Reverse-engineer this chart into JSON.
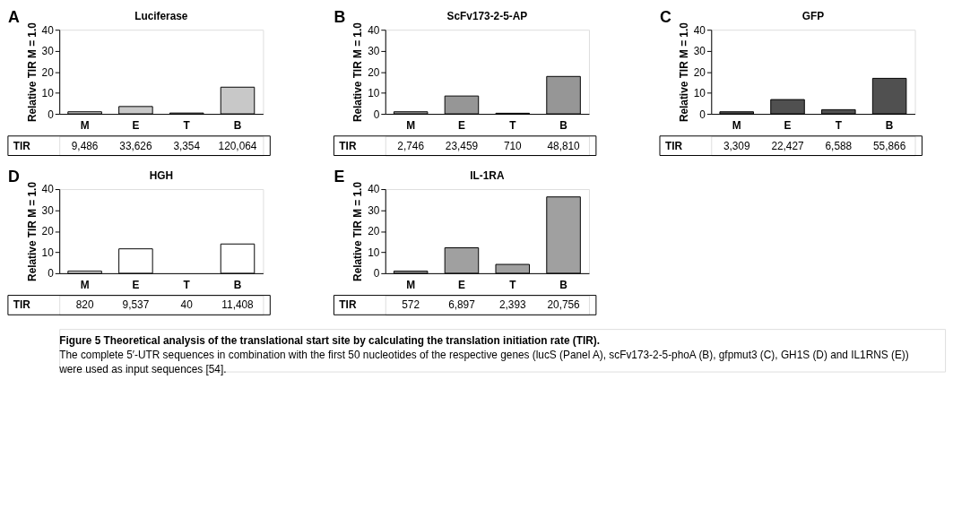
{
  "chart_data": [
    {
      "type": "bar",
      "title": "Luciferase",
      "ylabel": "Relative TIR M = 1.0",
      "categories": [
        "M",
        "E",
        "T",
        "B"
      ],
      "values": [
        1,
        3.5,
        0.4,
        12.7
      ],
      "color": "#c8c8c8",
      "ylim": [
        0,
        40
      ],
      "yticks": [
        0,
        10,
        20,
        30,
        40
      ],
      "grid": false,
      "annotations": [
        "A",
        "TIR",
        "9,486",
        "33,626",
        "3,354",
        "120,064"
      ]
    },
    {
      "type": "bar",
      "title": "ScFv173-2-5-AP",
      "ylabel": "Relative TIR M = 1.0",
      "categories": [
        "M",
        "E",
        "T",
        "B"
      ],
      "values": [
        1,
        8.5,
        0.3,
        17.8
      ],
      "color": "#969696",
      "ylim": [
        0,
        40
      ],
      "yticks": [
        0,
        10,
        20,
        30,
        40
      ],
      "grid": false,
      "annotations": [
        "B",
        "TIR",
        "2,746",
        "23,459",
        "710",
        "48,810"
      ]
    },
    {
      "type": "bar",
      "title": "GFP",
      "ylabel": "Relative TIR M = 1.0",
      "categories": [
        "M",
        "E",
        "T",
        "B"
      ],
      "values": [
        1,
        6.8,
        2.0,
        16.9
      ],
      "color": "#505050",
      "ylim": [
        0,
        40
      ],
      "yticks": [
        0,
        10,
        20,
        30,
        40
      ],
      "grid": false,
      "annotations": [
        "C",
        "TIR",
        "3,309",
        "22,427",
        "6,588",
        "55,866"
      ]
    },
    {
      "type": "bar",
      "title": "HGH",
      "ylabel": "Relative TIR M = 1.0",
      "categories": [
        "M",
        "E",
        "T",
        "B"
      ],
      "values": [
        1,
        11.6,
        0,
        13.9
      ],
      "color": "#ffffff",
      "ylim": [
        0,
        40
      ],
      "yticks": [
        0,
        10,
        20,
        30,
        40
      ],
      "grid": false,
      "annotations": [
        "D",
        "TIR",
        "820",
        "9,537",
        "40",
        "11,408"
      ]
    },
    {
      "type": "bar",
      "title": "IL-1RA",
      "ylabel": "Relative TIR M = 1.0",
      "categories": [
        "M",
        "E",
        "T",
        "B"
      ],
      "values": [
        1,
        12.1,
        4.2,
        36.3
      ],
      "color": "#a0a0a0",
      "ylim": [
        0,
        40
      ],
      "yticks": [
        0,
        10,
        20,
        30,
        40
      ],
      "grid": false,
      "annotations": [
        "E",
        "TIR",
        "572",
        "6,897",
        "2,393",
        "20,756",
        "Figure 5 Theoretical analysis of the translational start site by calculating the translation initiation rate (TIR).",
        "The complete 5′-UTR sequences in combination with the first 50 nucleotides of the respective genes (lucS (Panel A), scFv173-2-5-phoA (B), gfpmut3 (C), GH1S (D) and IL1RNS (E)) were used as input sequences [54]."
      ]
    }
  ]
}
